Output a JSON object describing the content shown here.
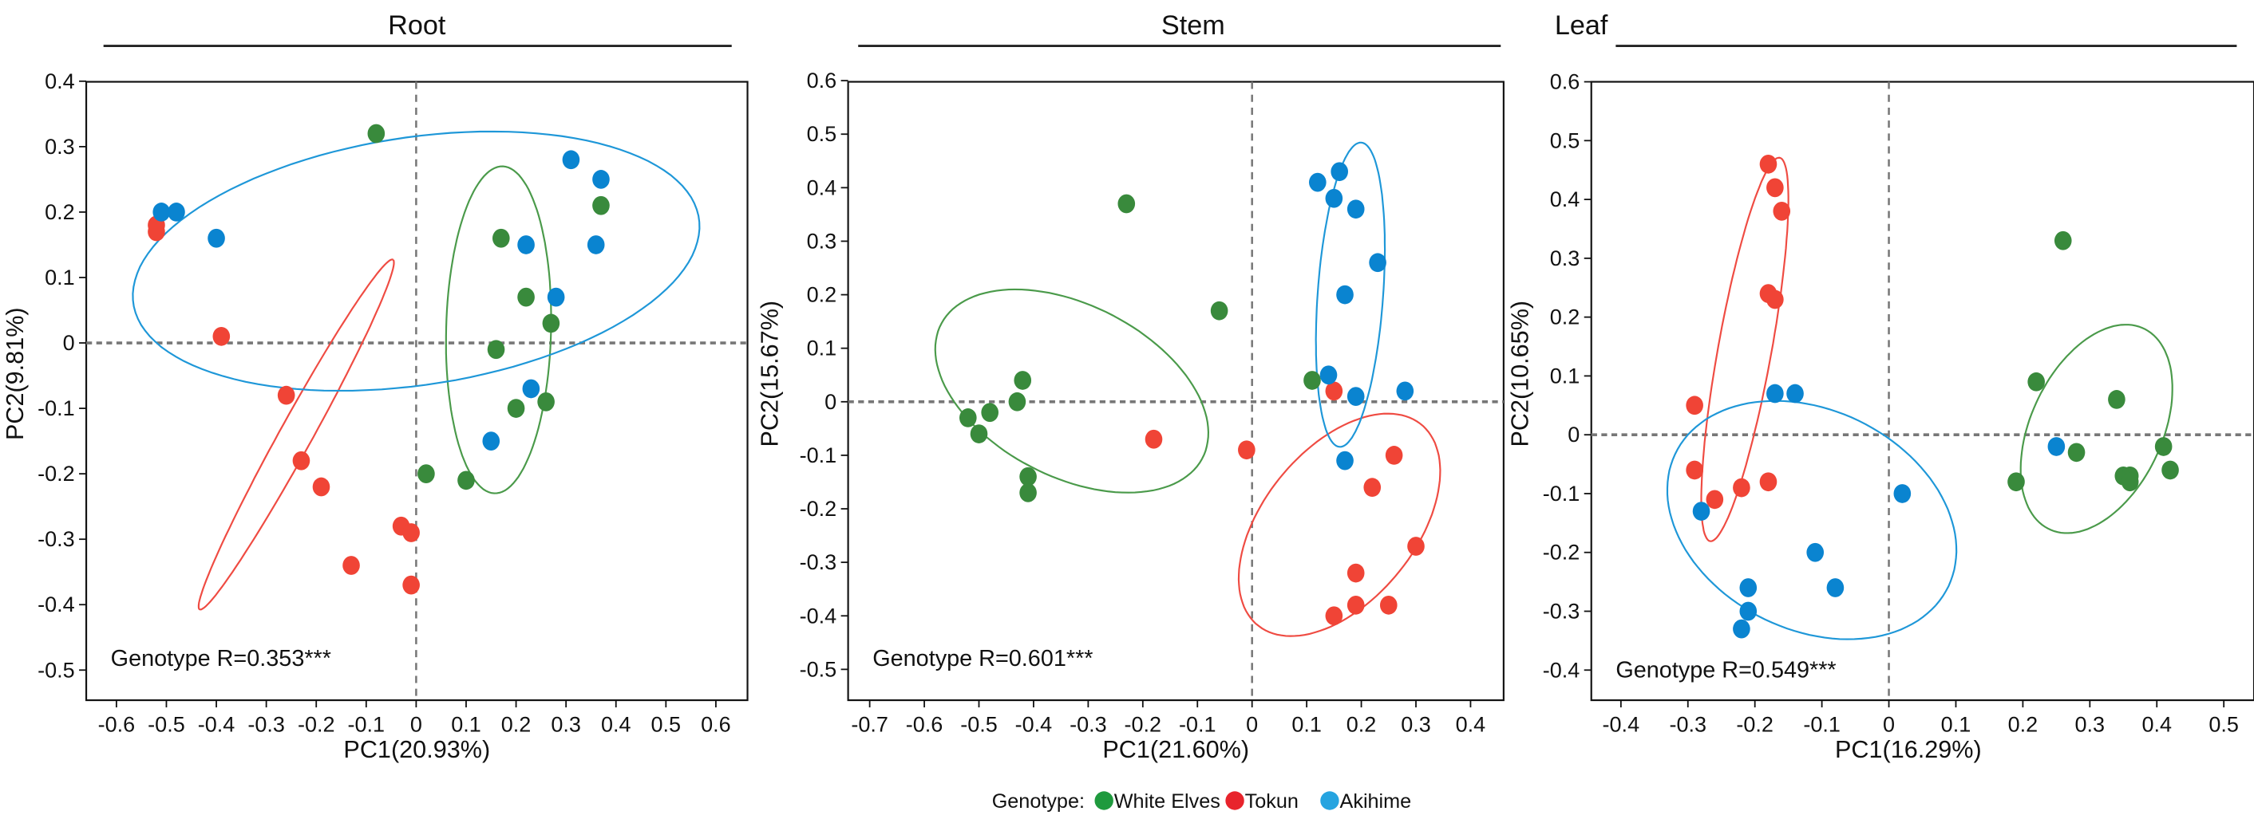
{
  "chart_data": [
    {
      "type": "scatter",
      "title": "Root",
      "xlabel": "PC1(20.93%)",
      "ylabel": "PC2(9.81%)",
      "xlim": [
        -0.66,
        0.66
      ],
      "ylim": [
        -0.55,
        0.4
      ],
      "xticks": [
        -0.6,
        -0.5,
        -0.4,
        -0.3,
        -0.2,
        -0.1,
        0,
        0.1,
        0.2,
        0.3,
        0.4,
        0.5,
        0.6
      ],
      "yticks": [
        0.4,
        0.3,
        0.2,
        0.1,
        0,
        -0.1,
        -0.2,
        -0.3,
        -0.4,
        -0.5
      ],
      "annotation": "Genotype R=0.353***",
      "series": [
        {
          "name": "White Elves",
          "points": [
            [
              -0.08,
              0.32
            ],
            [
              0.17,
              0.16
            ],
            [
              0.37,
              0.21
            ],
            [
              0.22,
              0.07
            ],
            [
              0.27,
              0.03
            ],
            [
              0.16,
              -0.01
            ],
            [
              0.26,
              -0.09
            ],
            [
              0.2,
              -0.1
            ],
            [
              0.02,
              -0.2
            ],
            [
              0.1,
              -0.21
            ]
          ],
          "ellipse": {
            "cx": 0.165,
            "cy": 0.02,
            "rx": 0.105,
            "ry": 0.25,
            "angle": -2
          }
        },
        {
          "name": "Tokun",
          "points": [
            [
              -0.52,
              0.18
            ],
            [
              -0.52,
              0.17
            ],
            [
              -0.39,
              0.01
            ],
            [
              -0.26,
              -0.08
            ],
            [
              -0.23,
              -0.18
            ],
            [
              -0.19,
              -0.22
            ],
            [
              -0.03,
              -0.28
            ],
            [
              -0.01,
              -0.29
            ],
            [
              -0.13,
              -0.34
            ],
            [
              -0.01,
              -0.37
            ]
          ],
          "ellipse": {
            "cx": -0.24,
            "cy": -0.14,
            "rx": 0.33,
            "ry": 0.03,
            "angle": 54
          }
        },
        {
          "name": "Akihime",
          "points": [
            [
              -0.51,
              0.2
            ],
            [
              -0.48,
              0.2
            ],
            [
              -0.4,
              0.16
            ],
            [
              0.31,
              0.28
            ],
            [
              0.37,
              0.25
            ],
            [
              0.22,
              0.15
            ],
            [
              0.36,
              0.15
            ],
            [
              0.28,
              0.07
            ],
            [
              0.23,
              -0.07
            ],
            [
              0.15,
              -0.15
            ]
          ],
          "ellipse": {
            "cx": 0.0,
            "cy": 0.125,
            "rx": 0.57,
            "ry": 0.19,
            "angle": 6
          }
        }
      ]
    },
    {
      "type": "scatter",
      "title": "Stem",
      "xlabel": "PC1(21.60%)",
      "ylabel": "PC2(15.67%)",
      "xlim": [
        -0.76,
        0.46
      ],
      "ylim": [
        -0.56,
        0.6
      ],
      "xticks": [
        -0.7,
        -0.6,
        -0.5,
        -0.4,
        -0.3,
        -0.2,
        -0.1,
        0,
        0.1,
        0.2,
        0.3,
        0.4
      ],
      "yticks": [
        0.6,
        0.5,
        0.4,
        0.3,
        0.2,
        0.1,
        0,
        -0.1,
        -0.2,
        -0.3,
        -0.4,
        -0.5
      ],
      "annotation": "Genotype R=0.601***",
      "series": [
        {
          "name": "White Elves",
          "points": [
            [
              -0.23,
              0.37
            ],
            [
              -0.06,
              0.17
            ],
            [
              -0.52,
              -0.03
            ],
            [
              -0.48,
              -0.02
            ],
            [
              -0.5,
              -0.06
            ],
            [
              -0.42,
              0.04
            ],
            [
              -0.43,
              0.0
            ],
            [
              -0.41,
              -0.14
            ],
            [
              -0.41,
              -0.17
            ],
            [
              0.11,
              0.04
            ]
          ],
          "ellipse": {
            "cx": -0.33,
            "cy": 0.02,
            "rx": 0.27,
            "ry": 0.16,
            "angle": -28
          }
        },
        {
          "name": "Tokun",
          "points": [
            [
              -0.18,
              -0.07
            ],
            [
              -0.01,
              -0.09
            ],
            [
              0.15,
              0.02
            ],
            [
              0.26,
              -0.1
            ],
            [
              0.22,
              -0.16
            ],
            [
              0.3,
              -0.27
            ],
            [
              0.19,
              -0.32
            ],
            [
              0.19,
              -0.38
            ],
            [
              0.25,
              -0.38
            ],
            [
              0.15,
              -0.4
            ]
          ],
          "ellipse": {
            "cx": 0.16,
            "cy": -0.23,
            "rx": 0.24,
            "ry": 0.14,
            "angle": 52
          }
        },
        {
          "name": "Akihime",
          "points": [
            [
              0.12,
              0.41
            ],
            [
              0.16,
              0.43
            ],
            [
              0.15,
              0.38
            ],
            [
              0.19,
              0.36
            ],
            [
              0.23,
              0.26
            ],
            [
              0.17,
              0.2
            ],
            [
              0.14,
              0.05
            ],
            [
              0.19,
              0.01
            ],
            [
              0.28,
              0.02
            ],
            [
              0.17,
              -0.11
            ]
          ],
          "ellipse": {
            "cx": 0.18,
            "cy": 0.2,
            "rx": 0.06,
            "ry": 0.285,
            "angle": -4
          }
        }
      ]
    },
    {
      "type": "scatter",
      "title": "Leaf",
      "xlabel": "PC1(16.29%)",
      "ylabel": "PC2(10.65%)",
      "xlim": [
        -0.45,
        0.54
      ],
      "ylim": [
        -0.45,
        0.6
      ],
      "xticks": [
        -0.4,
        -0.3,
        -0.2,
        -0.1,
        0,
        0.1,
        0.2,
        0.3,
        0.4,
        0.5
      ],
      "yticks": [
        0.6,
        0.5,
        0.4,
        0.3,
        0.2,
        0.1,
        0,
        -0.1,
        -0.2,
        -0.3,
        -0.4
      ],
      "annotation": "Genotype R=0.549***",
      "series": [
        {
          "name": "White Elves",
          "points": [
            [
              0.26,
              0.33
            ],
            [
              0.22,
              0.09
            ],
            [
              0.34,
              0.06
            ],
            [
              0.28,
              -0.03
            ],
            [
              0.19,
              -0.08
            ],
            [
              0.41,
              -0.02
            ],
            [
              0.42,
              -0.06
            ],
            [
              0.35,
              -0.07
            ],
            [
              0.36,
              -0.07
            ],
            [
              0.36,
              -0.08
            ]
          ],
          "ellipse": {
            "cx": 0.31,
            "cy": 0.01,
            "rx": 0.1,
            "ry": 0.185,
            "angle": -20
          }
        },
        {
          "name": "Tokun",
          "points": [
            [
              -0.18,
              0.46
            ],
            [
              -0.17,
              0.42
            ],
            [
              -0.16,
              0.38
            ],
            [
              -0.18,
              0.24
            ],
            [
              -0.17,
              0.23
            ],
            [
              -0.29,
              0.05
            ],
            [
              -0.29,
              -0.06
            ],
            [
              -0.26,
              -0.11
            ],
            [
              -0.22,
              -0.09
            ],
            [
              -0.18,
              -0.08
            ]
          ],
          "ellipse": {
            "cx": -0.215,
            "cy": 0.145,
            "rx": 0.04,
            "ry": 0.33,
            "angle": -9
          }
        },
        {
          "name": "Akihime",
          "points": [
            [
              -0.17,
              0.07
            ],
            [
              -0.14,
              0.07
            ],
            [
              -0.28,
              -0.13
            ],
            [
              0.02,
              -0.1
            ],
            [
              -0.11,
              -0.2
            ],
            [
              -0.08,
              -0.26
            ],
            [
              -0.21,
              -0.26
            ],
            [
              -0.21,
              -0.3
            ],
            [
              -0.22,
              -0.33
            ],
            [
              0.25,
              -0.02
            ]
          ],
          "ellipse": {
            "cx": -0.115,
            "cy": -0.145,
            "rx": 0.235,
            "ry": 0.18,
            "angle": -38
          }
        }
      ]
    }
  ],
  "legend": {
    "title": "Genotype:",
    "position": "bottom-center",
    "items": [
      {
        "label": "White Elves",
        "color": "#2e8b3a"
      },
      {
        "label": "Tokun",
        "color": "#f0412f"
      },
      {
        "label": "Akihime",
        "color": "#0a84d0"
      }
    ]
  },
  "colors": {
    "White Elves": "#398a3c",
    "Tokun": "#f04436",
    "Akihime": "#0a84d0",
    "ellipse_White Elves": "#4a9a4a",
    "ellipse_Tokun": "#ef4b42",
    "ellipse_Akihime": "#1e97d8",
    "refline": "#777777"
  }
}
